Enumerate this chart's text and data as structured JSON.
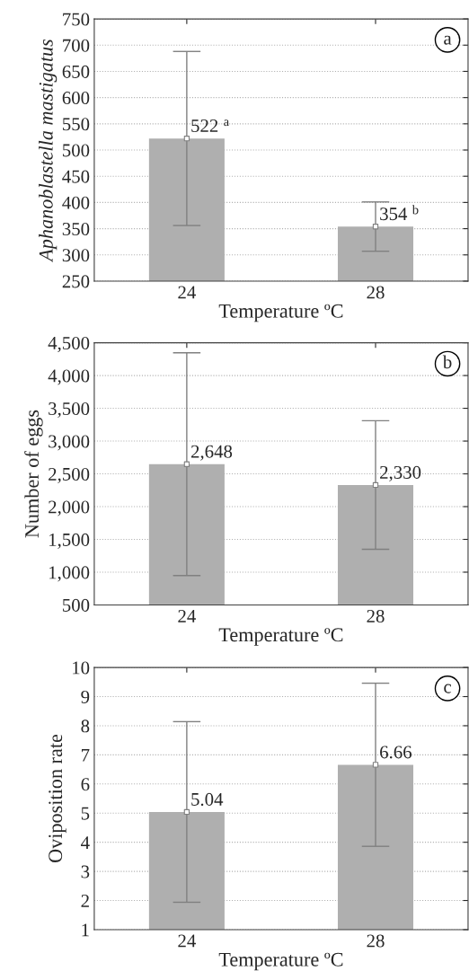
{
  "chart_data": [
    {
      "type": "bar",
      "categories": [
        "24",
        "28"
      ],
      "series": [
        {
          "color": "#afafaf",
          "values": [
            522,
            354
          ],
          "errors": [
            166,
            47
          ],
          "value_labels": [
            "522 $^{a}$",
            "354 $^{b}$"
          ]
        },
        {
          "type": "scatter",
          "color": "#ffffff",
          "x": [
            "24",
            "28"
          ],
          "values": [
            522,
            354
          ]
        }
      ],
      "marker": "square",
      "xlabel": "Temperature ºC",
      "ylabel": "Aphanoblastella mastigatus",
      "ylim": [
        250,
        750
      ],
      "yticks": [
        250,
        300,
        350,
        400,
        450,
        500,
        550,
        600,
        650,
        700,
        750
      ],
      "grid": "y",
      "annotations": [
        "a"
      ]
    },
    {
      "type": "bar",
      "categories": [
        "24",
        "28"
      ],
      "series": [
        {
          "color": "#afafaf",
          "values": [
            2648,
            2330
          ],
          "errors": [
            1700,
            980
          ],
          "value_labels": [
            "2,648",
            "2,330"
          ]
        },
        {
          "type": "scatter",
          "color": "#ffffff",
          "x": [
            "24",
            "28"
          ],
          "values": [
            2648,
            2330
          ]
        }
      ],
      "marker": "square",
      "xlabel": "Temperature ºC",
      "ylabel": "Number of eggs",
      "ylim": [
        500,
        4500
      ],
      "yticks": [
        {
          "value": 500,
          "label": "500"
        },
        {
          "value": 1000,
          "label": "1,000"
        },
        {
          "value": 1500,
          "label": "1,500"
        },
        {
          "value": 2000,
          "label": "2,000"
        },
        {
          "value": 2500,
          "label": "2,500"
        },
        {
          "value": 3000,
          "label": "3,000"
        },
        {
          "value": 3500,
          "label": "3,500"
        },
        {
          "value": 4000,
          "label": "4,000"
        },
        {
          "value": 4500,
          "label": "4,500"
        }
      ],
      "grid": "y",
      "annotations": [
        "b"
      ]
    },
    {
      "type": "bar",
      "categories": [
        "24",
        "28"
      ],
      "series": [
        {
          "color": "#afafaf",
          "values": [
            5.04,
            6.66
          ],
          "errors": [
            3.1,
            2.8
          ],
          "value_labels": [
            "5.04",
            "6.66"
          ]
        },
        {
          "type": "scatter",
          "color": "#ffffff",
          "x": [
            "24",
            "28"
          ],
          "values": [
            5.04,
            6.66
          ]
        }
      ],
      "marker": "square",
      "xlabel": "Temperature ºC",
      "ylabel": "Oviposition rate",
      "ylim": [
        1,
        10
      ],
      "yticks": [
        1,
        2,
        3,
        4,
        5,
        6,
        7,
        8,
        9,
        10
      ],
      "grid": "y",
      "annotations": [
        "c"
      ]
    }
  ]
}
